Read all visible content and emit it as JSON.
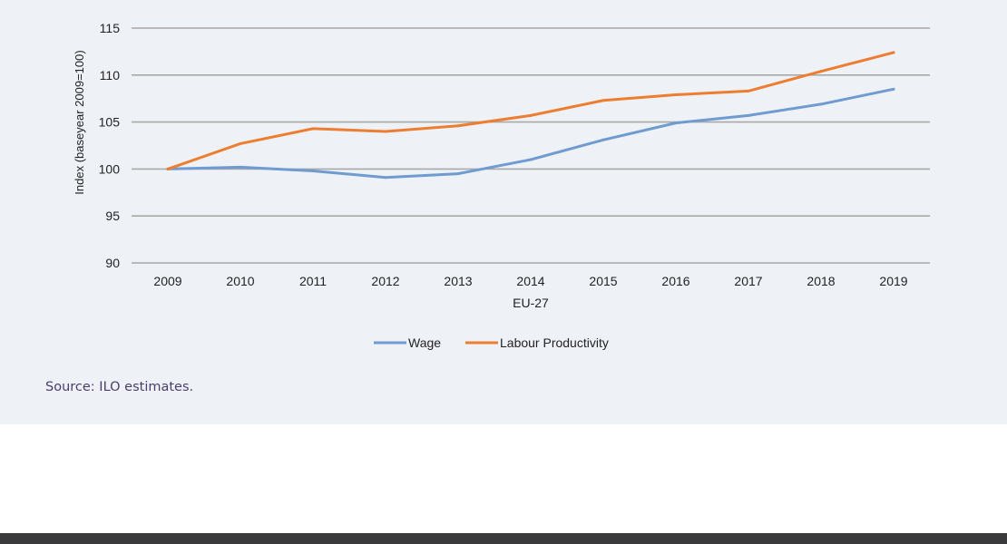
{
  "chart_data": {
    "type": "line",
    "title": "",
    "xlabel": "EU-27",
    "ylabel": "Index (baseyear 2009=100)",
    "x": [
      "2009",
      "2010",
      "2011",
      "2012",
      "2013",
      "2014",
      "2015",
      "2016",
      "2017",
      "2018",
      "2019"
    ],
    "ylim": [
      90,
      115
    ],
    "yticks": [
      "90",
      "95",
      "100",
      "105",
      "110",
      "115"
    ],
    "grid": true,
    "legend_position": "bottom",
    "series": [
      {
        "name": "Wage",
        "color": "#6f9bd1",
        "values": [
          100,
          100.2,
          99.8,
          99.1,
          99.5,
          101,
          103.1,
          104.9,
          105.7,
          106.9,
          108.5
        ]
      },
      {
        "name": "Labour Productivity",
        "color": "#ed7d31",
        "values": [
          100,
          102.7,
          104.3,
          104.0,
          104.6,
          105.7,
          107.3,
          107.9,
          108.3,
          110.4,
          112.4
        ]
      }
    ]
  },
  "source": "Source: ILO estimates."
}
